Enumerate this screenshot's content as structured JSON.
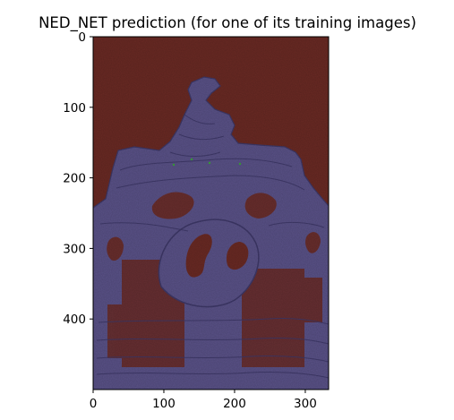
{
  "chart_data": {
    "type": "heatmap",
    "title": "NED_NET prediction (for one of its training images)",
    "xlabel": "",
    "ylabel": "",
    "xlim": [
      0,
      333
    ],
    "ylim": [
      500,
      0
    ],
    "x_ticks": [
      0,
      100,
      200,
      300
    ],
    "y_ticks": [
      0,
      100,
      200,
      300,
      400
    ],
    "y_axis_inverted": true,
    "grid": false,
    "legend": "none",
    "image_description": "image prediction rendered as a heatmap",
    "colors": {
      "background": "#6a2a24",
      "foreground": "#5a5288",
      "foreground_dark": "#3e3868",
      "accent_points": "#3aa63a"
    }
  }
}
